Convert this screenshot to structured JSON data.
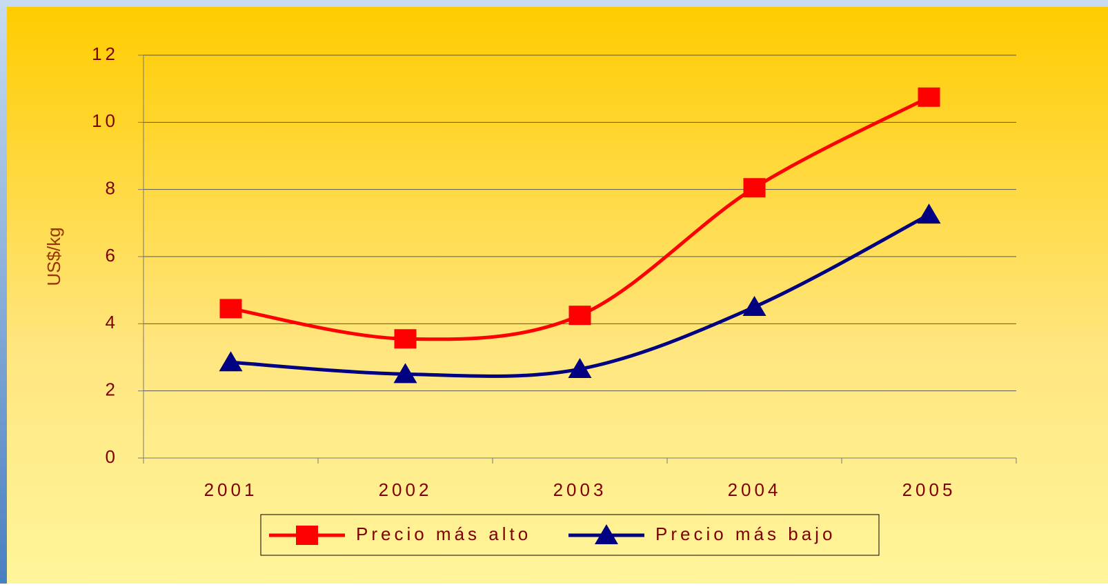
{
  "chart_data": {
    "type": "line",
    "y_label": "US$/kg",
    "categories": [
      "2001",
      "2002",
      "2003",
      "2004",
      "2005"
    ],
    "series": [
      {
        "name": "Precio más alto",
        "color": "#ff0000",
        "marker": "square",
        "values": [
          4.45,
          3.55,
          4.25,
          8.05,
          10.75
        ]
      },
      {
        "name": "Precio más bajo",
        "color": "#000080",
        "marker": "triangle",
        "values": [
          2.85,
          2.5,
          2.65,
          4.5,
          7.25
        ]
      }
    ],
    "ylim": [
      0,
      12
    ],
    "yticks": [
      0,
      2,
      4,
      6,
      8,
      10,
      12
    ],
    "grid": true,
    "smooth": true,
    "legend": "bottom"
  }
}
